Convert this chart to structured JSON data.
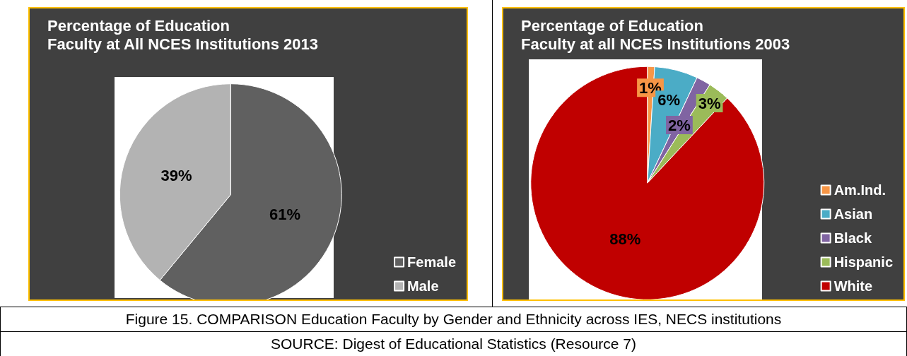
{
  "chart_data": [
    {
      "type": "pie",
      "title": "Percentage of Education\nFaculty at All NCES Institutions 2013",
      "categories": [
        "Female",
        "Male"
      ],
      "values": [
        61,
        39
      ],
      "colors": [
        "#606060",
        "#b3b3b3"
      ],
      "data_labels": true,
      "value_labels": [
        "61%",
        "39%"
      ],
      "legend": "bottom right"
    },
    {
      "type": "pie",
      "title": "Percentage of Education\nFaculty at all NCES Institutions 2003",
      "categories": [
        "Am.Ind.",
        "Asian",
        "Black",
        "Hispanic",
        "White"
      ],
      "values": [
        1,
        6,
        2,
        3,
        88
      ],
      "colors": [
        "#f79646",
        "#4bacc6",
        "#8064a2",
        "#9bbb59",
        "#c00000"
      ],
      "data_labels": true,
      "value_labels": [
        "1%",
        "6%",
        "2%",
        "3%",
        "88%"
      ],
      "legend": "right",
      "annotations": [
        "Figure 15. COMPARISON Education Faculty by Gender and Ethnicity across IES, NECS institutions",
        "SOURCE:  Digest of Educational Statistics (Resource 7)"
      ]
    }
  ]
}
